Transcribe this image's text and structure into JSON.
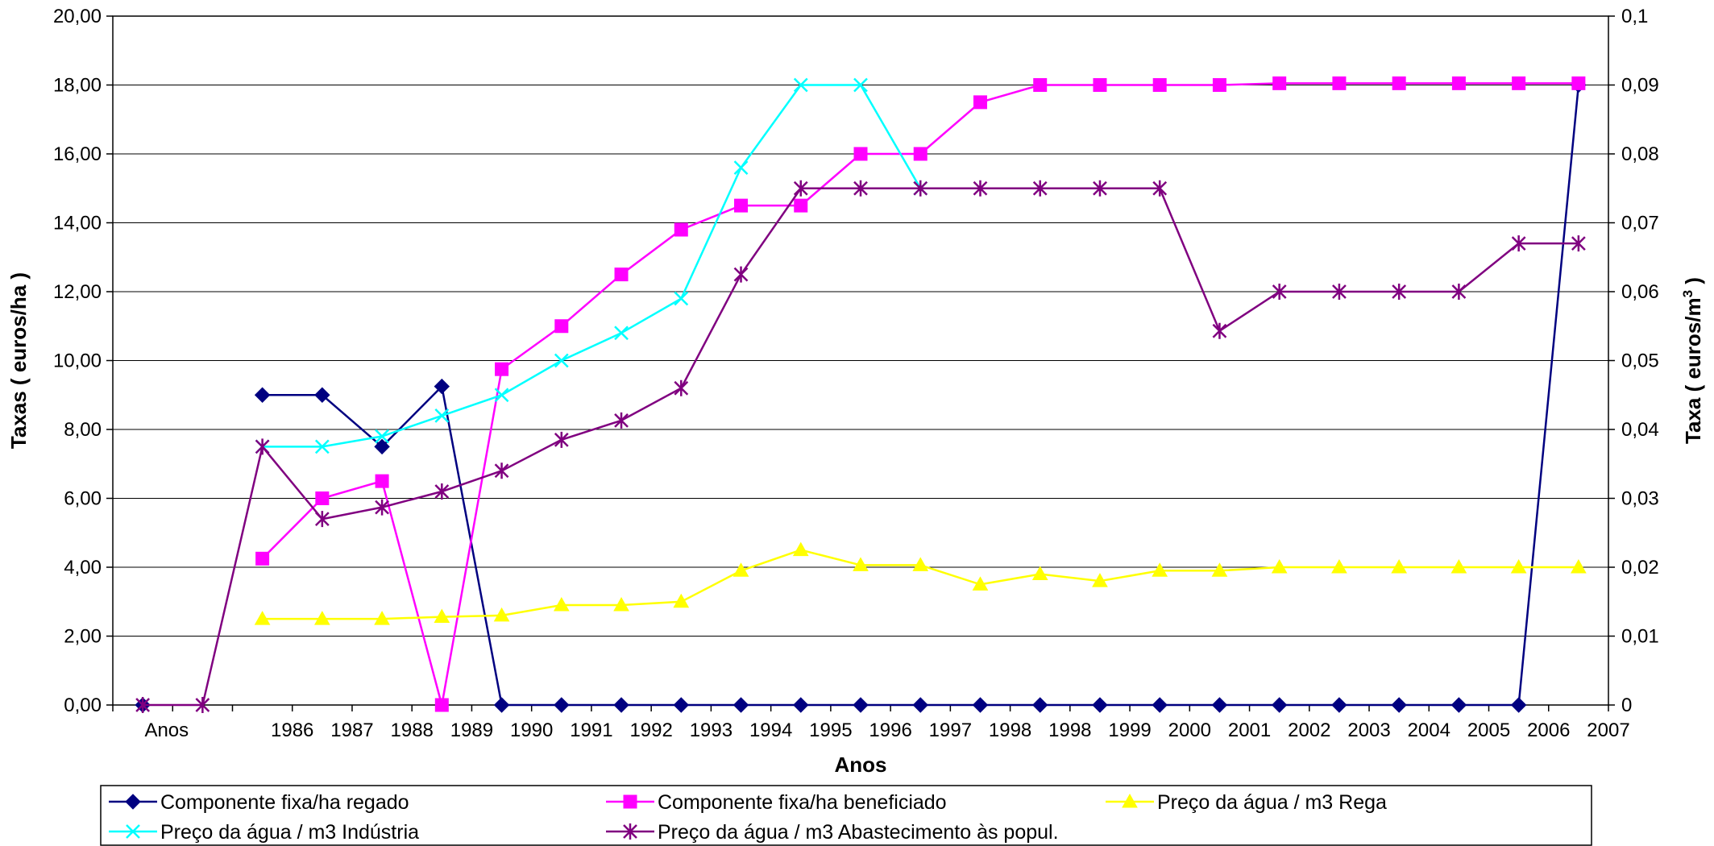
{
  "chart_data": {
    "type": "line",
    "categories": [
      "Anos",
      "",
      "1986",
      "1987",
      "1988",
      "1989",
      "1990",
      "1991",
      "1992",
      "1993",
      "1994",
      "1995",
      "1996",
      "1997",
      "1998",
      "1998",
      "1999",
      "2000",
      "2001",
      "2002",
      "2003",
      "2004",
      "2005",
      "2006",
      "2007"
    ],
    "xlabel": "Anos",
    "ylabel": "Taxas ( euros/ha )",
    "y2label": "Taxa ( euros/m",
    "y2label_sup": "3",
    "y2label_end": " )",
    "ylim": [
      0,
      20
    ],
    "y2lim": [
      0,
      0.1
    ],
    "yticks": [
      "0,00",
      "2,00",
      "4,00",
      "6,00",
      "8,00",
      "10,00",
      "12,00",
      "14,00",
      "16,00",
      "18,00",
      "20,00"
    ],
    "y2ticks": [
      "0",
      "0,01",
      "0,02",
      "0,03",
      "0,04",
      "0,05",
      "0,06",
      "0,07",
      "0,08",
      "0,09",
      "0,1"
    ],
    "grid": true,
    "legend_position": "bottom",
    "series": [
      {
        "name": "Componente fixa/ha  regado",
        "axis": "left",
        "color": "#000080",
        "marker": "diamond",
        "values": [
          0,
          null,
          9.0,
          9.0,
          7.5,
          9.25,
          0,
          0,
          0,
          0,
          0,
          0,
          0,
          0,
          0,
          0,
          0,
          0,
          0,
          0,
          0,
          0,
          0,
          0,
          18.0
        ]
      },
      {
        "name": "Componente fixa/ha  beneficiado",
        "axis": "left",
        "color": "#ff00ff",
        "marker": "square",
        "values": [
          null,
          null,
          4.25,
          6.0,
          6.5,
          0,
          9.75,
          11.0,
          12.5,
          13.8,
          14.5,
          14.5,
          16.0,
          16.0,
          17.5,
          18.0,
          18.0,
          18.0,
          18.0,
          18.05,
          18.05,
          18.05,
          18.05,
          18.05,
          18.05
        ]
      },
      {
        "name": "Preço da água / m3 Rega",
        "axis": "right",
        "color": "#ffff00",
        "marker": "triangle",
        "values": [
          null,
          null,
          0.0125,
          0.0125,
          0.0125,
          0.0128,
          0.013,
          0.0145,
          0.0145,
          0.015,
          0.0195,
          0.0225,
          0.0203,
          0.0203,
          0.0175,
          0.019,
          0.018,
          0.0195,
          0.0195,
          0.02,
          0.02,
          0.02,
          0.02,
          0.02,
          0.02
        ]
      },
      {
        "name": "Preço da água / m3 Indústria",
        "axis": "right",
        "color": "#00ffff",
        "marker": "x",
        "values": [
          null,
          null,
          0.0375,
          0.0375,
          0.039,
          0.042,
          0.045,
          0.05,
          0.054,
          0.059,
          0.078,
          0.09,
          0.09,
          0.075,
          null,
          null,
          null,
          null,
          null,
          null,
          null,
          null,
          null,
          null,
          null
        ]
      },
      {
        "name": "Preço da água / m3 Abastecimento às popul.",
        "axis": "right",
        "color": "#800080",
        "marker": "star",
        "values": [
          0,
          0,
          0.0375,
          0.027,
          0.0287,
          0.031,
          0.034,
          0.0385,
          0.0413,
          0.046,
          0.0625,
          0.075,
          0.075,
          0.075,
          0.075,
          0.075,
          0.075,
          0.075,
          0.0543,
          0.06,
          0.06,
          0.06,
          0.06,
          0.067,
          0.067
        ]
      }
    ]
  }
}
